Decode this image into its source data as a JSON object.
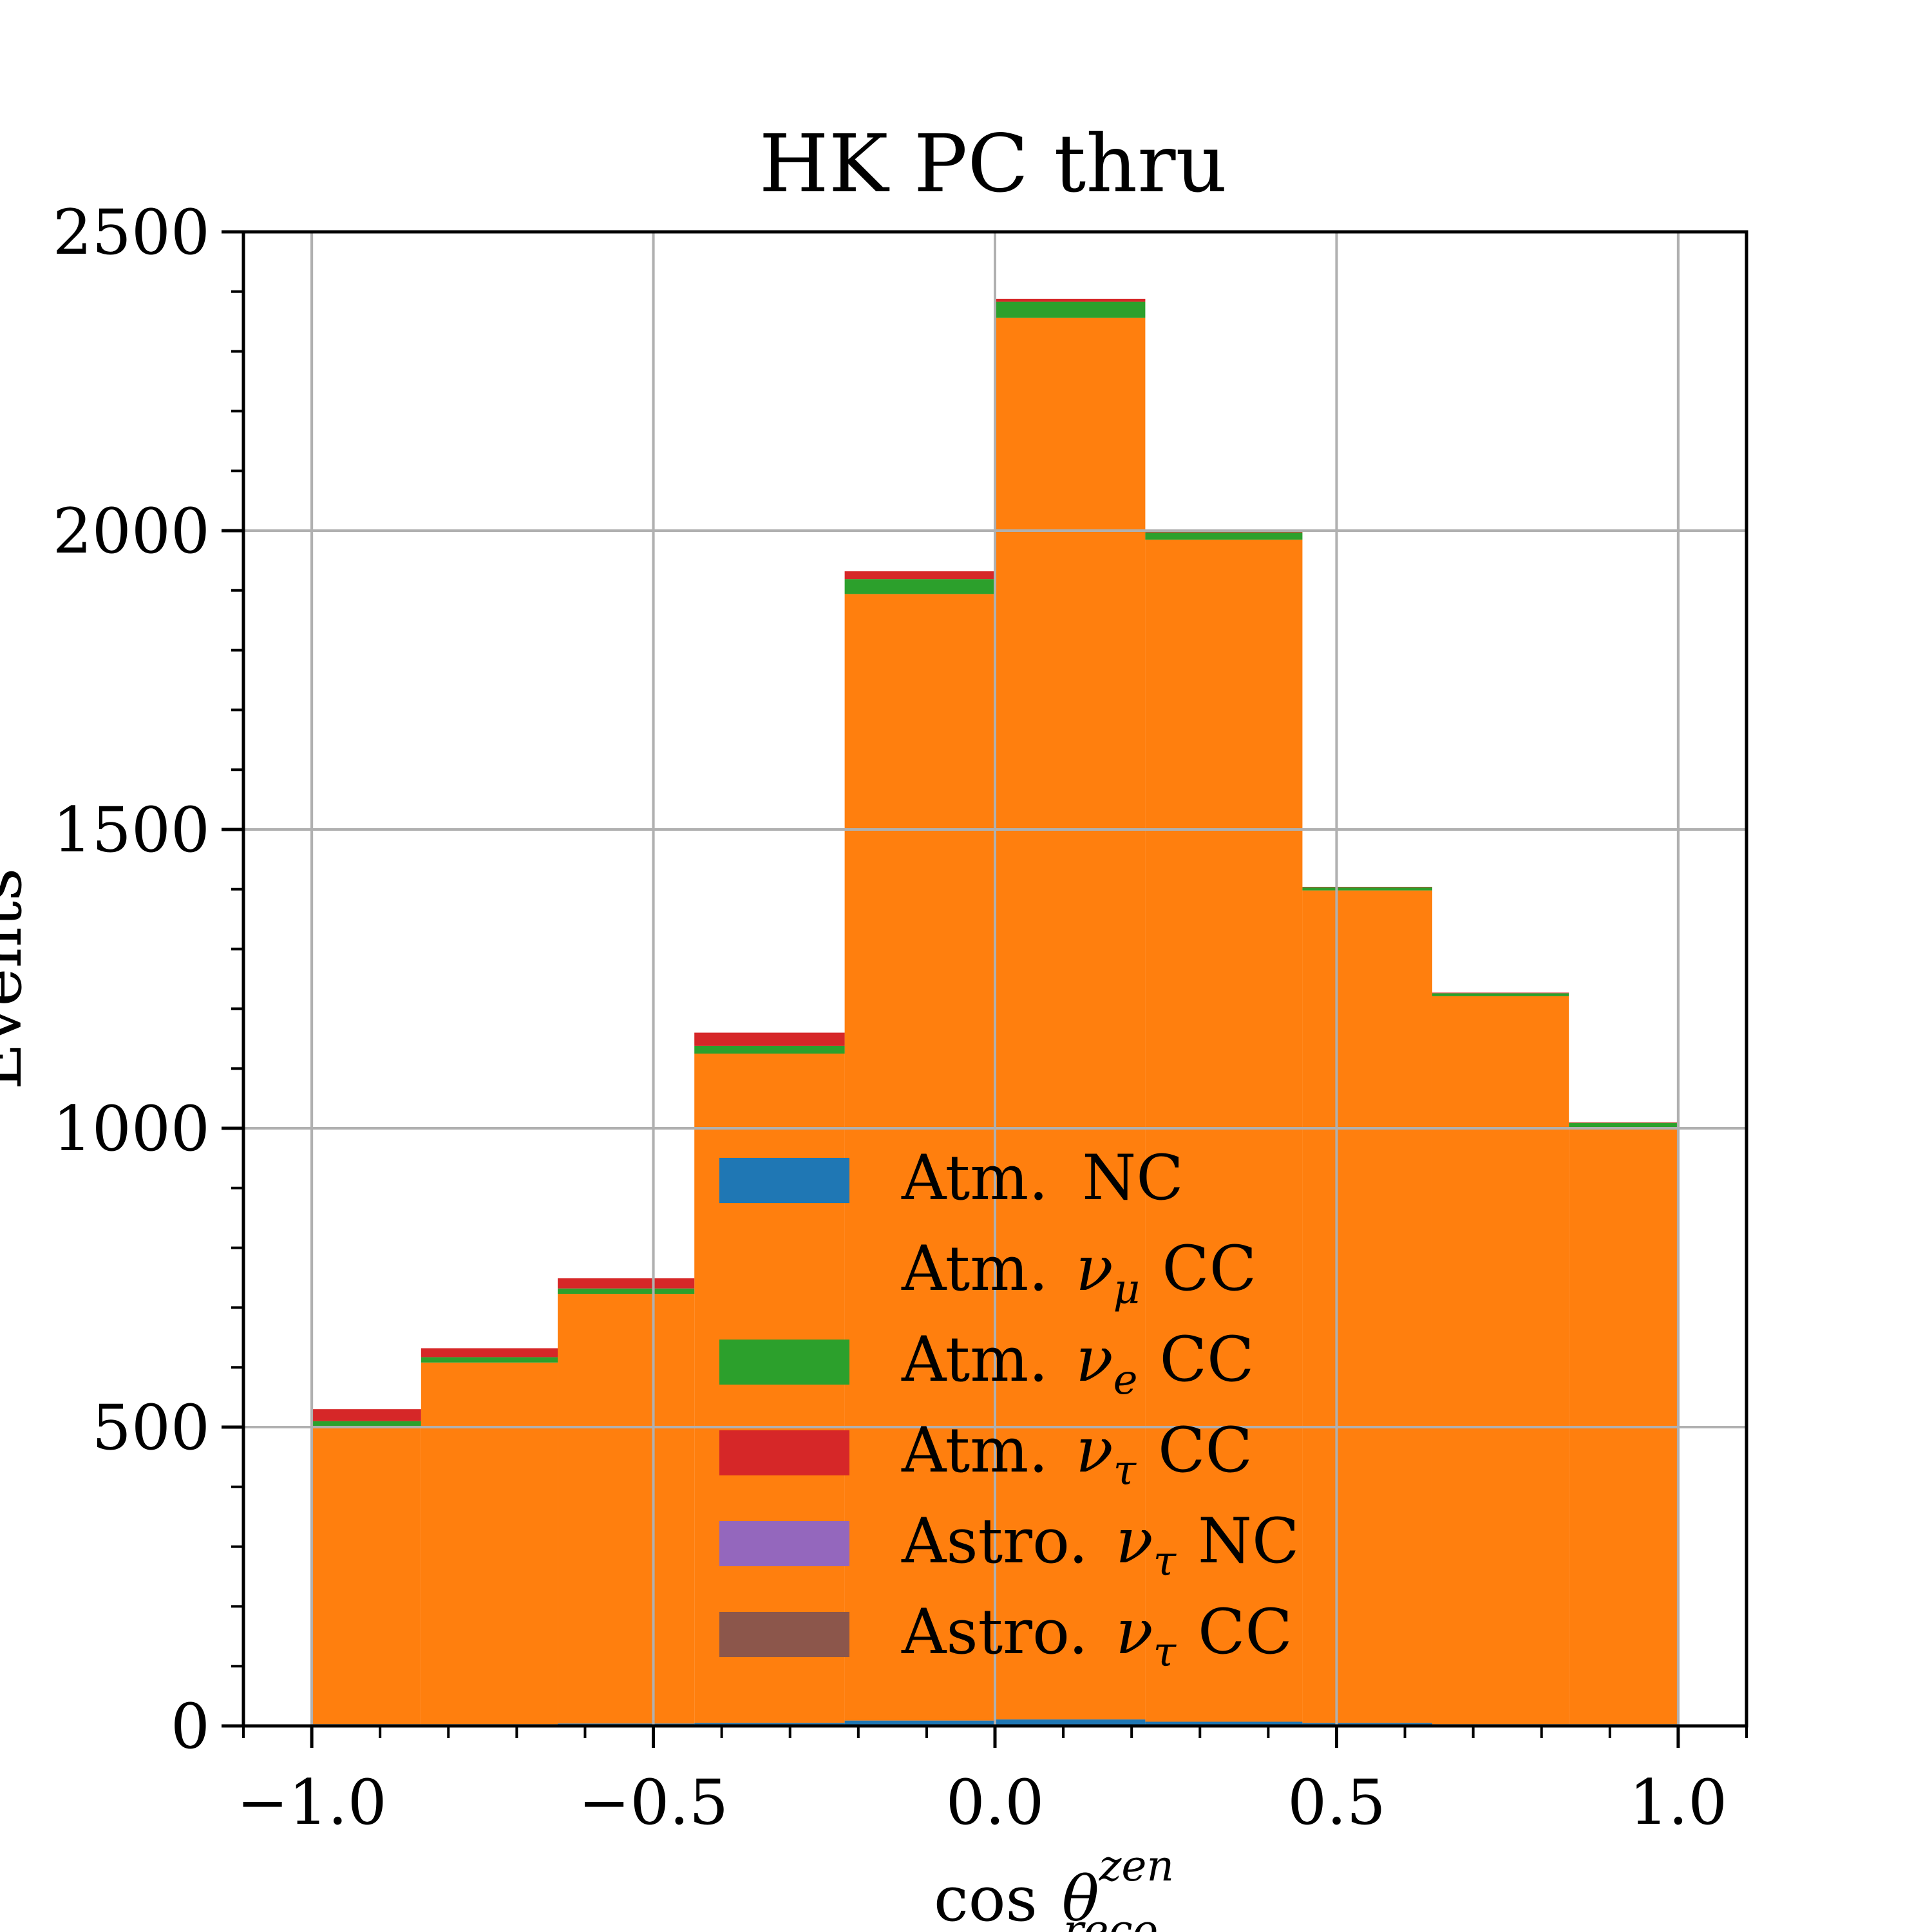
{
  "chart_data": {
    "type": "bar",
    "stacked": true,
    "histogram": true,
    "title": "HK PC thru",
    "xlabel": {
      "prefix": "cos",
      "symbol": "θ",
      "superscript": "zen",
      "subscript": "reco"
    },
    "ylabel": "Events",
    "xlim": [
      -1.1,
      1.1
    ],
    "ylim": [
      0,
      2500
    ],
    "x_ticks": [
      -1.0,
      -0.5,
      0.0,
      0.5,
      1.0
    ],
    "x_tick_labels": [
      "−1.0",
      "−0.5",
      "0.0",
      "0.5",
      "1.0"
    ],
    "y_ticks": [
      0,
      500,
      1000,
      1500,
      2000,
      2500
    ],
    "y_tick_labels": [
      "0",
      "500",
      "1000",
      "1500",
      "2000",
      "2500"
    ],
    "grid": true,
    "legend_position": "bottom-center",
    "bin_edges": [
      -1.0,
      -0.84,
      -0.64,
      -0.44,
      -0.22,
      0.0,
      0.22,
      0.45,
      0.64,
      0.84,
      1.0
    ],
    "series": [
      {
        "name": "Atm. NC",
        "legend_base": "Atm.",
        "legend_symbol": "ν",
        "legend_sub": "",
        "legend_suffix": "NC",
        "show_in_legend": true,
        "color": "#1f77b4",
        "values": [
          3,
          3,
          4,
          5,
          9,
          11,
          7,
          5,
          3,
          3
        ]
      },
      {
        "name": "Atm. ν_μ CC",
        "legend_base": "Atm.",
        "legend_symbol": "ν",
        "legend_sub": "μ",
        "legend_suffix": "CC",
        "show_in_legend": false,
        "color": "#ff7f0e",
        "values": [
          497,
          605,
          719,
          1120,
          1885,
          2345,
          1978,
          1393,
          1218,
          998
        ]
      },
      {
        "name": "Atm. ν_e CC",
        "legend_base": "Atm.",
        "legend_symbol": "ν",
        "legend_sub": "e",
        "legend_suffix": "CC",
        "show_in_legend": true,
        "color": "#2ca02c",
        "values": [
          10,
          9,
          9,
          13,
          25,
          27,
          12,
          5,
          5,
          8
        ]
      },
      {
        "name": "Atm. ν_τ CC",
        "legend_base": "Atm.",
        "legend_symbol": "ν",
        "legend_sub": "τ",
        "legend_suffix": "CC",
        "show_in_legend": true,
        "color": "#d62728",
        "values": [
          20,
          15,
          17,
          22,
          13,
          5,
          2,
          1,
          1,
          1
        ]
      },
      {
        "name": "Astro. ν_τ NC",
        "legend_base": "Astro.",
        "legend_symbol": "ν",
        "legend_sub": "τ",
        "legend_suffix": "NC",
        "show_in_legend": true,
        "color": "#9467bd",
        "values": [
          0,
          0,
          0,
          0,
          0,
          0,
          0,
          0,
          0,
          0
        ]
      },
      {
        "name": "Astro. ν_τ CC",
        "legend_base": "Astro.",
        "legend_symbol": "ν",
        "legend_sub": "τ",
        "legend_suffix": "CC",
        "show_in_legend": true,
        "color": "#8c564b",
        "values": [
          0,
          0,
          0,
          0,
          0,
          0,
          0,
          0,
          0,
          0
        ]
      }
    ]
  }
}
